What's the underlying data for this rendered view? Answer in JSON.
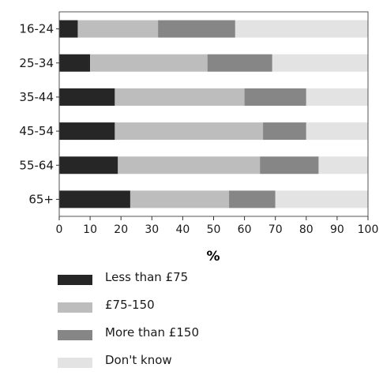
{
  "chart_data": {
    "type": "bar",
    "orientation": "horizontal",
    "stacked": true,
    "categories": [
      "16-24",
      "25-34",
      "35-44",
      "45-54",
      "55-64",
      "65+"
    ],
    "series": [
      {
        "name": "Less than £75",
        "color": "#262626",
        "values": [
          6,
          10,
          18,
          18,
          19,
          23
        ]
      },
      {
        "name": "£75-150",
        "color": "#bdbdbd",
        "values": [
          26,
          38,
          42,
          48,
          46,
          32
        ]
      },
      {
        "name": "More than £150",
        "color": "#868686",
        "values": [
          25,
          21,
          20,
          14,
          19,
          15
        ]
      },
      {
        "name": "Don't know",
        "color": "#e3e3e3",
        "values": [
          43,
          31,
          20,
          20,
          16,
          30
        ]
      }
    ],
    "xlabel": "%",
    "xlim": [
      0,
      100
    ],
    "xticks": [
      "0",
      "10",
      "20",
      "30",
      "40",
      "50",
      "60",
      "70",
      "80",
      "90",
      "100"
    ],
    "grid": false,
    "legend_position": "bottom"
  }
}
